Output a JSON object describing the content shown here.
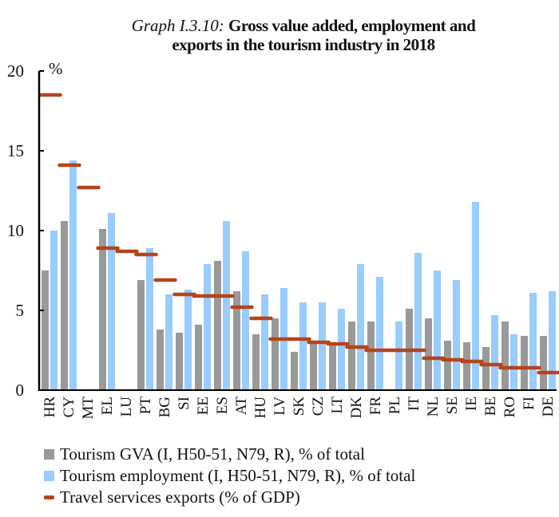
{
  "chart_data": {
    "type": "bar",
    "title_prefix": "Graph I.3.10:",
    "title_main_line1": "Gross value added, employment and",
    "title_main_line2": "exports in the tourism industry in 2018",
    "ylabel": "%",
    "xlabel": "",
    "ylim": [
      0,
      20
    ],
    "yticks": [
      0,
      5,
      10,
      15,
      20
    ],
    "grid": false,
    "legend_position": "bottom",
    "categories": [
      "HR",
      "CY",
      "MT",
      "EL",
      "LU",
      "PT",
      "BG",
      "SI",
      "EE",
      "ES",
      "AT",
      "HU",
      "LV",
      "SK",
      "CZ",
      "LT",
      "DK",
      "FR",
      "PL",
      "IT",
      "NL",
      "SE",
      "IE",
      "BE",
      "RO",
      "FI",
      "DE"
    ],
    "series": [
      {
        "name": "Tourism GVA (I, H50-51, N79, R), % of total",
        "kind": "bar",
        "color": "#999999",
        "values": [
          7.5,
          10.6,
          null,
          10.1,
          null,
          6.9,
          3.8,
          3.6,
          4.1,
          8.1,
          6.2,
          3.5,
          4.5,
          2.4,
          3.1,
          3.0,
          4.3,
          4.3,
          null,
          5.1,
          4.5,
          3.1,
          3.0,
          2.7,
          4.3,
          3.4,
          3.4
        ]
      },
      {
        "name": "Tourism employment (I, H50-51, N79, R), % of total",
        "kind": "bar",
        "color": "#99ccff",
        "values": [
          10.0,
          14.4,
          null,
          11.1,
          null,
          8.9,
          6.0,
          6.3,
          7.9,
          10.6,
          8.7,
          6.0,
          6.4,
          5.5,
          5.5,
          5.1,
          7.9,
          7.1,
          4.3,
          8.6,
          7.5,
          6.9,
          11.8,
          4.7,
          3.5,
          6.1,
          6.2
        ]
      },
      {
        "name": "Travel services exports (% of GDP)",
        "kind": "marker-dash",
        "color": "#b5441b",
        "values": [
          18.5,
          14.1,
          12.7,
          8.9,
          8.7,
          8.5,
          6.9,
          6.0,
          5.9,
          5.9,
          5.2,
          4.5,
          3.2,
          3.2,
          3.0,
          2.9,
          2.7,
          2.5,
          2.5,
          2.5,
          2.0,
          1.9,
          1.8,
          1.6,
          1.4,
          1.4,
          1.1
        ]
      }
    ]
  }
}
